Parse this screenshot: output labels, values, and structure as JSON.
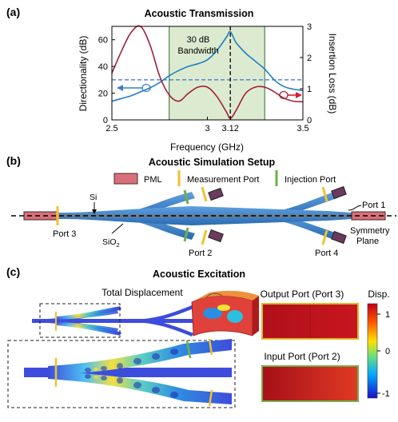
{
  "panel_a": {
    "label": "(a)",
    "title": "Acoustic Transmission",
    "bandwidth_label_line1": "30 dB",
    "bandwidth_label_line2": "Bandwidth",
    "xlabel": "Frequency (GHz)",
    "ylabel_left": "Directionality (dB)",
    "ylabel_right": "Insertion Loss (dB)",
    "xticks": [
      "2.5",
      "3",
      "3.12",
      "3.5"
    ],
    "yticks_left": [
      "0",
      "20",
      "40",
      "60"
    ],
    "yticks_right": [
      "0",
      "1",
      "2",
      "3"
    ],
    "colors": {
      "directionality": "#1f7fbf",
      "insertion_loss": "#a0203a",
      "band_fill": "#dcebd0",
      "threshold": "#3a6fd0"
    }
  },
  "chart_data": {
    "type": "line",
    "x": [
      2.5,
      2.55,
      2.6,
      2.65,
      2.7,
      2.75,
      2.8,
      2.85,
      2.9,
      2.95,
      3.0,
      3.05,
      3.1,
      3.12,
      3.15,
      3.2,
      3.25,
      3.3,
      3.35,
      3.4,
      3.45,
      3.5
    ],
    "series": [
      {
        "axis": "left",
        "values": [
          14,
          16,
          18,
          21,
          24,
          28,
          33,
          37,
          40,
          42,
          45,
          52,
          62,
          66,
          58,
          50,
          44,
          38,
          30,
          25,
          23,
          22
        ]
      },
      {
        "axis": "right",
        "values": [
          1.5,
          2.2,
          2.8,
          3.0,
          2.4,
          1.4,
          0.8,
          0.6,
          0.85,
          1.05,
          1.05,
          0.75,
          0.25,
          0.05,
          0.3,
          0.85,
          1.05,
          1.05,
          0.9,
          0.7,
          0.6,
          0.58
        ]
      }
    ],
    "xlim": [
      2.5,
      3.5
    ],
    "ylim_left": [
      0,
      70
    ],
    "ylim_right": [
      0,
      3
    ],
    "band": [
      2.8,
      3.3
    ],
    "marker_x": 3.12,
    "threshold_left": 30,
    "title": "Acoustic Transmission",
    "xlabel": "Frequency (GHz)",
    "ylabel": "Directionality (dB)",
    "ylabel_right": "Insertion Loss (dB)"
  },
  "panel_b": {
    "label": "(b)",
    "title": "Acoustic Simulation Setup",
    "legend": {
      "pml": "PML",
      "measurement": "Measurement Port",
      "injection": "Injection Port"
    },
    "labels": {
      "si": "Si",
      "sio2": "SiO",
      "sio2_sub": "2",
      "port1": "Port 1",
      "port2": "Port 2",
      "port3": "Port 3",
      "port4": "Port 4",
      "symmetry1": "Symmetry",
      "symmetry2": "Plane"
    },
    "colors": {
      "pml": "#d86f78",
      "measurement": "#f2c12e",
      "injection": "#6fb04a",
      "waveguide": "#3a7fc6",
      "port_box": "#6b3a5c"
    }
  },
  "panel_c": {
    "label": "(c)",
    "title": "Acoustic Excitation",
    "total_displacement": "Total Displacement",
    "output_port": "Output Port (Port 3)",
    "input_port": "Input Port (Port 2)",
    "colorbar_title": "Disp.",
    "colorbar_ticks": [
      "1",
      "0",
      "-1"
    ]
  }
}
